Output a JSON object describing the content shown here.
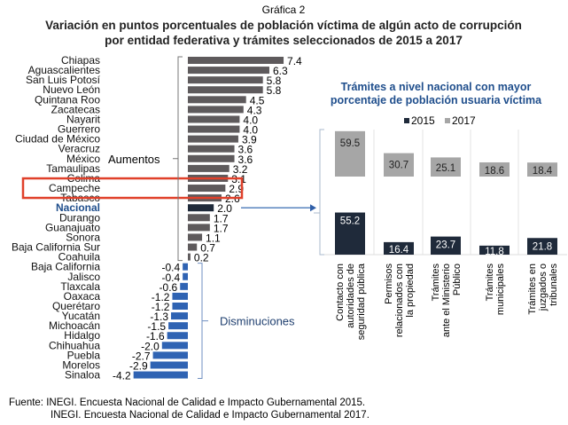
{
  "header": {
    "label": "Gráfica 2",
    "title_line1": "Variación en puntos porcentuales de población víctima de algún acto de corrupción",
    "title_line2": "por entidad federativa y trámites seleccionados de 2015 a 2017"
  },
  "footer": {
    "line1": "Fuente: INEGI. Encuesta Nacional de Calidad e Impacto Gubernamental 2015.",
    "line2": "INEGI. Encuesta Nacional de Calidad e Impacto Gubernamental 2017."
  },
  "chart_data": [
    {
      "type": "bar",
      "orientation": "horizontal",
      "categories": [
        "Chiapas",
        "Aguascalientes",
        "San Luis Potosí",
        "Nuevo León",
        "Quintana Roo",
        "Zacatecas",
        "Nayarit",
        "Guerrero",
        "Ciudad de México",
        "Veracruz",
        "México",
        "Tamaulipas",
        "Colima",
        "Campeche",
        "Tabasco",
        "Nacional",
        "Durango",
        "Guanajuato",
        "Sonora",
        "Baja California Sur",
        "Coahuila",
        "Baja California",
        "Jalisco",
        "Tlaxcala",
        "Oaxaca",
        "Querétaro",
        "Yucatán",
        "Michoacán",
        "Hidalgo",
        "Chihuahua",
        "Puebla",
        "Morelos",
        "Sinaloa"
      ],
      "values": [
        7.4,
        6.3,
        5.8,
        5.8,
        4.5,
        4.3,
        4.0,
        4.0,
        3.9,
        3.6,
        3.6,
        3.2,
        3.1,
        2.9,
        2.6,
        2.0,
        1.7,
        1.7,
        1.1,
        0.7,
        0.2,
        -0.4,
        -0.4,
        -0.6,
        -1.2,
        -1.2,
        -1.3,
        -1.5,
        -1.6,
        -2.0,
        -2.7,
        -2.9,
        -4.2
      ],
      "value_labels": [
        "7.4",
        "6.3",
        "5.8",
        "5.8",
        "4.5",
        "4.3",
        "4.0",
        "4.0",
        "3.9",
        "3.6",
        "3.6",
        "3.2",
        "3.1",
        "2.9",
        "2.6",
        "2.0",
        "1.7",
        "1.7",
        "1.1",
        "0.7",
        "0.2",
        "-0.4",
        "-0.4",
        "-0.6",
        "-1.2",
        "-1.2",
        "-1.3",
        "-1.5",
        "-1.6",
        "-2.0",
        "-2.7",
        "-2.9",
        "-4.2"
      ],
      "highlighted": "Campeche",
      "national": "Nacional",
      "annotations": {
        "increase": "Aumentos",
        "decrease": "Disminuciones"
      },
      "colors": {
        "increase": "#5e5a5c",
        "decrease": "#2f63b3",
        "national": "#1f2a3a",
        "highlight_box": "#e0402a",
        "national_label": "#1f4e8c"
      }
    },
    {
      "type": "bar",
      "title": "Trámites a nivel nacional con mayor porcentaje de población usuaria víctima",
      "categories": [
        [
          "Contacto con",
          "autoridades de",
          "seguridad pública"
        ],
        [
          "Permisos",
          "relacionados con",
          "la propiedad"
        ],
        [
          "Trámites",
          "ante el Ministerio",
          "Público"
        ],
        [
          "Trámites",
          "municipales"
        ],
        [
          "Trámites en",
          "juzgados o",
          "tribunales"
        ]
      ],
      "series": [
        {
          "name": "2015",
          "values": [
            55.2,
            16.4,
            23.7,
            11.8,
            21.8
          ],
          "color": "#1f2a3a"
        },
        {
          "name": "2017",
          "values": [
            59.5,
            30.7,
            25.1,
            18.6,
            18.4
          ],
          "color": "#a6a6a6"
        }
      ],
      "legend": "top",
      "title_color": "#1f4e8c"
    }
  ]
}
